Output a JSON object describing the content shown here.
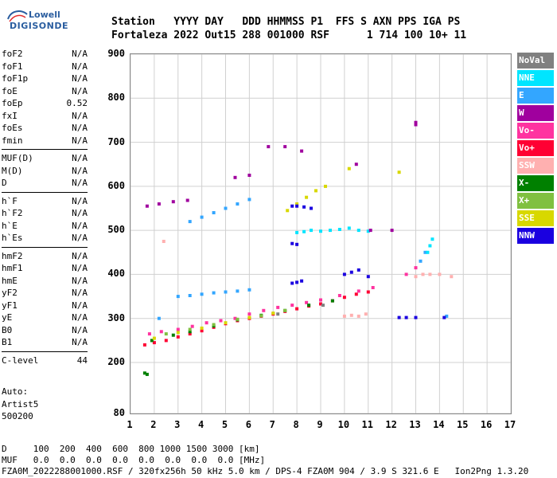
{
  "logo": {
    "line1": "Lowell",
    "line2": "DIGISONDE"
  },
  "header": {
    "row1": "Station   YYYY DAY   DDD HHMMSS P1  FFS S AXN PPS IGA PS",
    "row2": "Fortaleza 2022 Out15 288 001000 RSF      1 714 100 10+ 11"
  },
  "params": {
    "group1": [
      {
        "name": "foF2",
        "value": "N/A"
      },
      {
        "name": "foF1",
        "value": "N/A"
      },
      {
        "name": "foF1p",
        "value": "N/A"
      },
      {
        "name": "foE",
        "value": "N/A"
      },
      {
        "name": "foEp",
        "value": "0.52"
      },
      {
        "name": "fxI",
        "value": "N/A"
      },
      {
        "name": "foEs",
        "value": "N/A"
      },
      {
        "name": "fmin",
        "value": "N/A"
      }
    ],
    "group2": [
      {
        "name": "MUF(D)",
        "value": "N/A"
      },
      {
        "name": "M(D)",
        "value": "N/A"
      },
      {
        "name": "D",
        "value": "N/A"
      }
    ],
    "group3": [
      {
        "name": "h`F",
        "value": "N/A"
      },
      {
        "name": "h`F2",
        "value": "N/A"
      },
      {
        "name": "h`E",
        "value": "N/A"
      },
      {
        "name": "h`Es",
        "value": "N/A"
      }
    ],
    "group4": [
      {
        "name": "hmF2",
        "value": "N/A"
      },
      {
        "name": "hmF1",
        "value": "N/A"
      },
      {
        "name": "hmE",
        "value": "N/A"
      },
      {
        "name": "yF2",
        "value": "N/A"
      },
      {
        "name": "yF1",
        "value": "N/A"
      },
      {
        "name": "yE",
        "value": "N/A"
      },
      {
        "name": "B0",
        "value": "N/A"
      },
      {
        "name": "B1",
        "value": "N/A"
      }
    ],
    "group5": [
      {
        "name": "C-level",
        "value": "44"
      }
    ]
  },
  "auto": {
    "line1": "Auto:",
    "line2": "Artist5",
    "line3": "500200"
  },
  "legend": [
    {
      "label": "NoVal",
      "color": "#808080"
    },
    {
      "label": "NNE",
      "color": "#00e5ff"
    },
    {
      "label": "E",
      "color": "#33a6ff"
    },
    {
      "label": "W",
      "color": "#a0009e"
    },
    {
      "label": "Vo-",
      "color": "#ff33a0"
    },
    {
      "label": "Vo+",
      "color": "#ff0033"
    },
    {
      "label": "SSW",
      "color": "#ffb0b0"
    },
    {
      "label": "X-",
      "color": "#008000"
    },
    {
      "label": "X+",
      "color": "#80c040"
    },
    {
      "label": "SSE",
      "color": "#d8d800"
    },
    {
      "label": "NNW",
      "color": "#1a00e0"
    }
  ],
  "footer": {
    "drow": "D     100  200  400  600  800 1000 1500 3000 [km]",
    "mufrow": "MUF   0.0  0.0  0.0  0.0  0.0  0.0  0.0  0.0 [MHz]",
    "filerow": "FZA0M_2022288001000.RSF / 320fx256h 50 kHz 5.0 km / DPS-4 FZA0M 904 / 3.9 S 321.6 E   Ion2Png 1.3.20"
  },
  "chart_data": {
    "type": "scatter",
    "title": "",
    "xlabel": "",
    "ylabel": "",
    "x_ticks": [
      1,
      2,
      3,
      4,
      5,
      6,
      7,
      8,
      9,
      10,
      11,
      12,
      13,
      14,
      15,
      16,
      17
    ],
    "y_ticks": [
      80,
      200,
      300,
      400,
      500,
      600,
      700,
      800,
      900
    ],
    "xlim": [
      1,
      17
    ],
    "ylim_display": [
      80,
      900
    ],
    "grid": true,
    "legend_placement": "right",
    "series": [
      {
        "name": "Vo+",
        "color": "#ff0033",
        "points": [
          [
            1.6,
            240
          ],
          [
            2.0,
            245
          ],
          [
            2.5,
            250
          ],
          [
            3.0,
            258
          ],
          [
            3.5,
            265
          ],
          [
            4.0,
            272
          ],
          [
            4.5,
            280
          ],
          [
            5.0,
            288
          ],
          [
            5.5,
            295
          ],
          [
            6.0,
            300
          ],
          [
            6.5,
            305
          ],
          [
            7.0,
            310
          ],
          [
            7.5,
            316
          ],
          [
            8.0,
            322
          ],
          [
            8.5,
            328
          ],
          [
            9.0,
            333
          ],
          [
            9.5,
            340
          ],
          [
            10.0,
            348
          ],
          [
            10.5,
            355
          ],
          [
            11.0,
            360
          ]
        ]
      },
      {
        "name": "Vo-",
        "color": "#ff33a0",
        "points": [
          [
            1.8,
            265
          ],
          [
            2.3,
            270
          ],
          [
            3.0,
            275
          ],
          [
            3.6,
            282
          ],
          [
            4.2,
            290
          ],
          [
            4.8,
            295
          ],
          [
            5.4,
            300
          ],
          [
            6.0,
            310
          ],
          [
            6.6,
            318
          ],
          [
            7.2,
            325
          ],
          [
            7.8,
            330
          ],
          [
            8.4,
            336
          ],
          [
            9.0,
            342
          ],
          [
            9.8,
            352
          ],
          [
            10.6,
            362
          ],
          [
            11.2,
            370
          ],
          [
            12.6,
            400
          ],
          [
            13.0,
            415
          ]
        ]
      },
      {
        "name": "X-",
        "color": "#008000",
        "points": [
          [
            1.6,
            175
          ],
          [
            1.7,
            172
          ],
          [
            1.9,
            250
          ],
          [
            2.8,
            262
          ],
          [
            3.5,
            270
          ],
          [
            4.5,
            283
          ],
          [
            5.5,
            297
          ],
          [
            6.5,
            307
          ],
          [
            7.5,
            318
          ],
          [
            8.5,
            330
          ],
          [
            9.5,
            340
          ]
        ]
      },
      {
        "name": "SSE",
        "color": "#d8d800",
        "points": [
          [
            2.0,
            255
          ],
          [
            3.0,
            268
          ],
          [
            4.0,
            278
          ],
          [
            5.0,
            290
          ],
          [
            6.0,
            302
          ],
          [
            7.0,
            312
          ],
          [
            7.6,
            545
          ],
          [
            8.0,
            560
          ],
          [
            8.4,
            575
          ],
          [
            8.8,
            590
          ],
          [
            9.2,
            600
          ],
          [
            10.2,
            640
          ],
          [
            12.3,
            632
          ]
        ]
      },
      {
        "name": "E",
        "color": "#33a6ff",
        "points": [
          [
            2.2,
            300
          ],
          [
            3.0,
            350
          ],
          [
            3.5,
            352
          ],
          [
            4.0,
            355
          ],
          [
            4.5,
            358
          ],
          [
            5.0,
            360
          ],
          [
            5.5,
            362
          ],
          [
            6.0,
            365
          ],
          [
            3.5,
            520
          ],
          [
            4.0,
            530
          ],
          [
            4.5,
            540
          ],
          [
            5.0,
            550
          ],
          [
            5.5,
            560
          ],
          [
            6.0,
            570
          ],
          [
            13.2,
            430
          ],
          [
            13.4,
            450
          ],
          [
            14.3,
            305
          ]
        ]
      },
      {
        "name": "NNE",
        "color": "#00e5ff",
        "points": [
          [
            8.0,
            495
          ],
          [
            8.3,
            497
          ],
          [
            8.6,
            500
          ],
          [
            9.0,
            498
          ],
          [
            9.4,
            500
          ],
          [
            9.8,
            502
          ],
          [
            10.2,
            505
          ],
          [
            10.6,
            500
          ],
          [
            11.0,
            498
          ],
          [
            13.5,
            450
          ],
          [
            13.6,
            465
          ],
          [
            13.7,
            480
          ]
        ]
      },
      {
        "name": "NNW",
        "color": "#1a00e0",
        "points": [
          [
            7.8,
            555
          ],
          [
            8.0,
            555
          ],
          [
            8.3,
            553
          ],
          [
            8.6,
            550
          ],
          [
            7.8,
            470
          ],
          [
            8.0,
            468
          ],
          [
            7.8,
            380
          ],
          [
            8.0,
            382
          ],
          [
            8.2,
            385
          ],
          [
            10.0,
            400
          ],
          [
            10.3,
            405
          ],
          [
            10.6,
            410
          ],
          [
            11.0,
            395
          ],
          [
            12.3,
            302
          ],
          [
            12.6,
            302
          ],
          [
            13.0,
            302
          ],
          [
            14.2,
            302
          ]
        ]
      },
      {
        "name": "W",
        "color": "#a0009e",
        "points": [
          [
            1.7,
            555
          ],
          [
            2.2,
            560
          ],
          [
            2.8,
            565
          ],
          [
            3.4,
            568
          ],
          [
            5.4,
            620
          ],
          [
            6.0,
            625
          ],
          [
            6.8,
            690
          ],
          [
            7.5,
            690
          ],
          [
            8.2,
            680
          ],
          [
            10.5,
            650
          ],
          [
            11.1,
            500
          ],
          [
            12.0,
            500
          ],
          [
            13.0,
            745
          ],
          [
            13.0,
            740
          ]
        ]
      },
      {
        "name": "SSW",
        "color": "#ffb0b0",
        "points": [
          [
            2.4,
            475
          ],
          [
            10.0,
            305
          ],
          [
            10.3,
            307
          ],
          [
            10.6,
            305
          ],
          [
            10.9,
            310
          ],
          [
            13.0,
            395
          ],
          [
            13.3,
            400
          ],
          [
            13.6,
            400
          ],
          [
            14.0,
            400
          ],
          [
            14.5,
            395
          ]
        ]
      },
      {
        "name": "X+",
        "color": "#80c040",
        "points": [
          [
            2.5,
            265
          ],
          [
            3.5,
            275
          ],
          [
            4.5,
            286
          ],
          [
            5.5,
            298
          ],
          [
            6.5,
            306
          ],
          [
            7.5,
            318
          ]
        ]
      },
      {
        "name": "NoVal",
        "color": "#808080",
        "points": [
          [
            7.2,
            310
          ],
          [
            9.1,
            330
          ]
        ]
      }
    ]
  }
}
